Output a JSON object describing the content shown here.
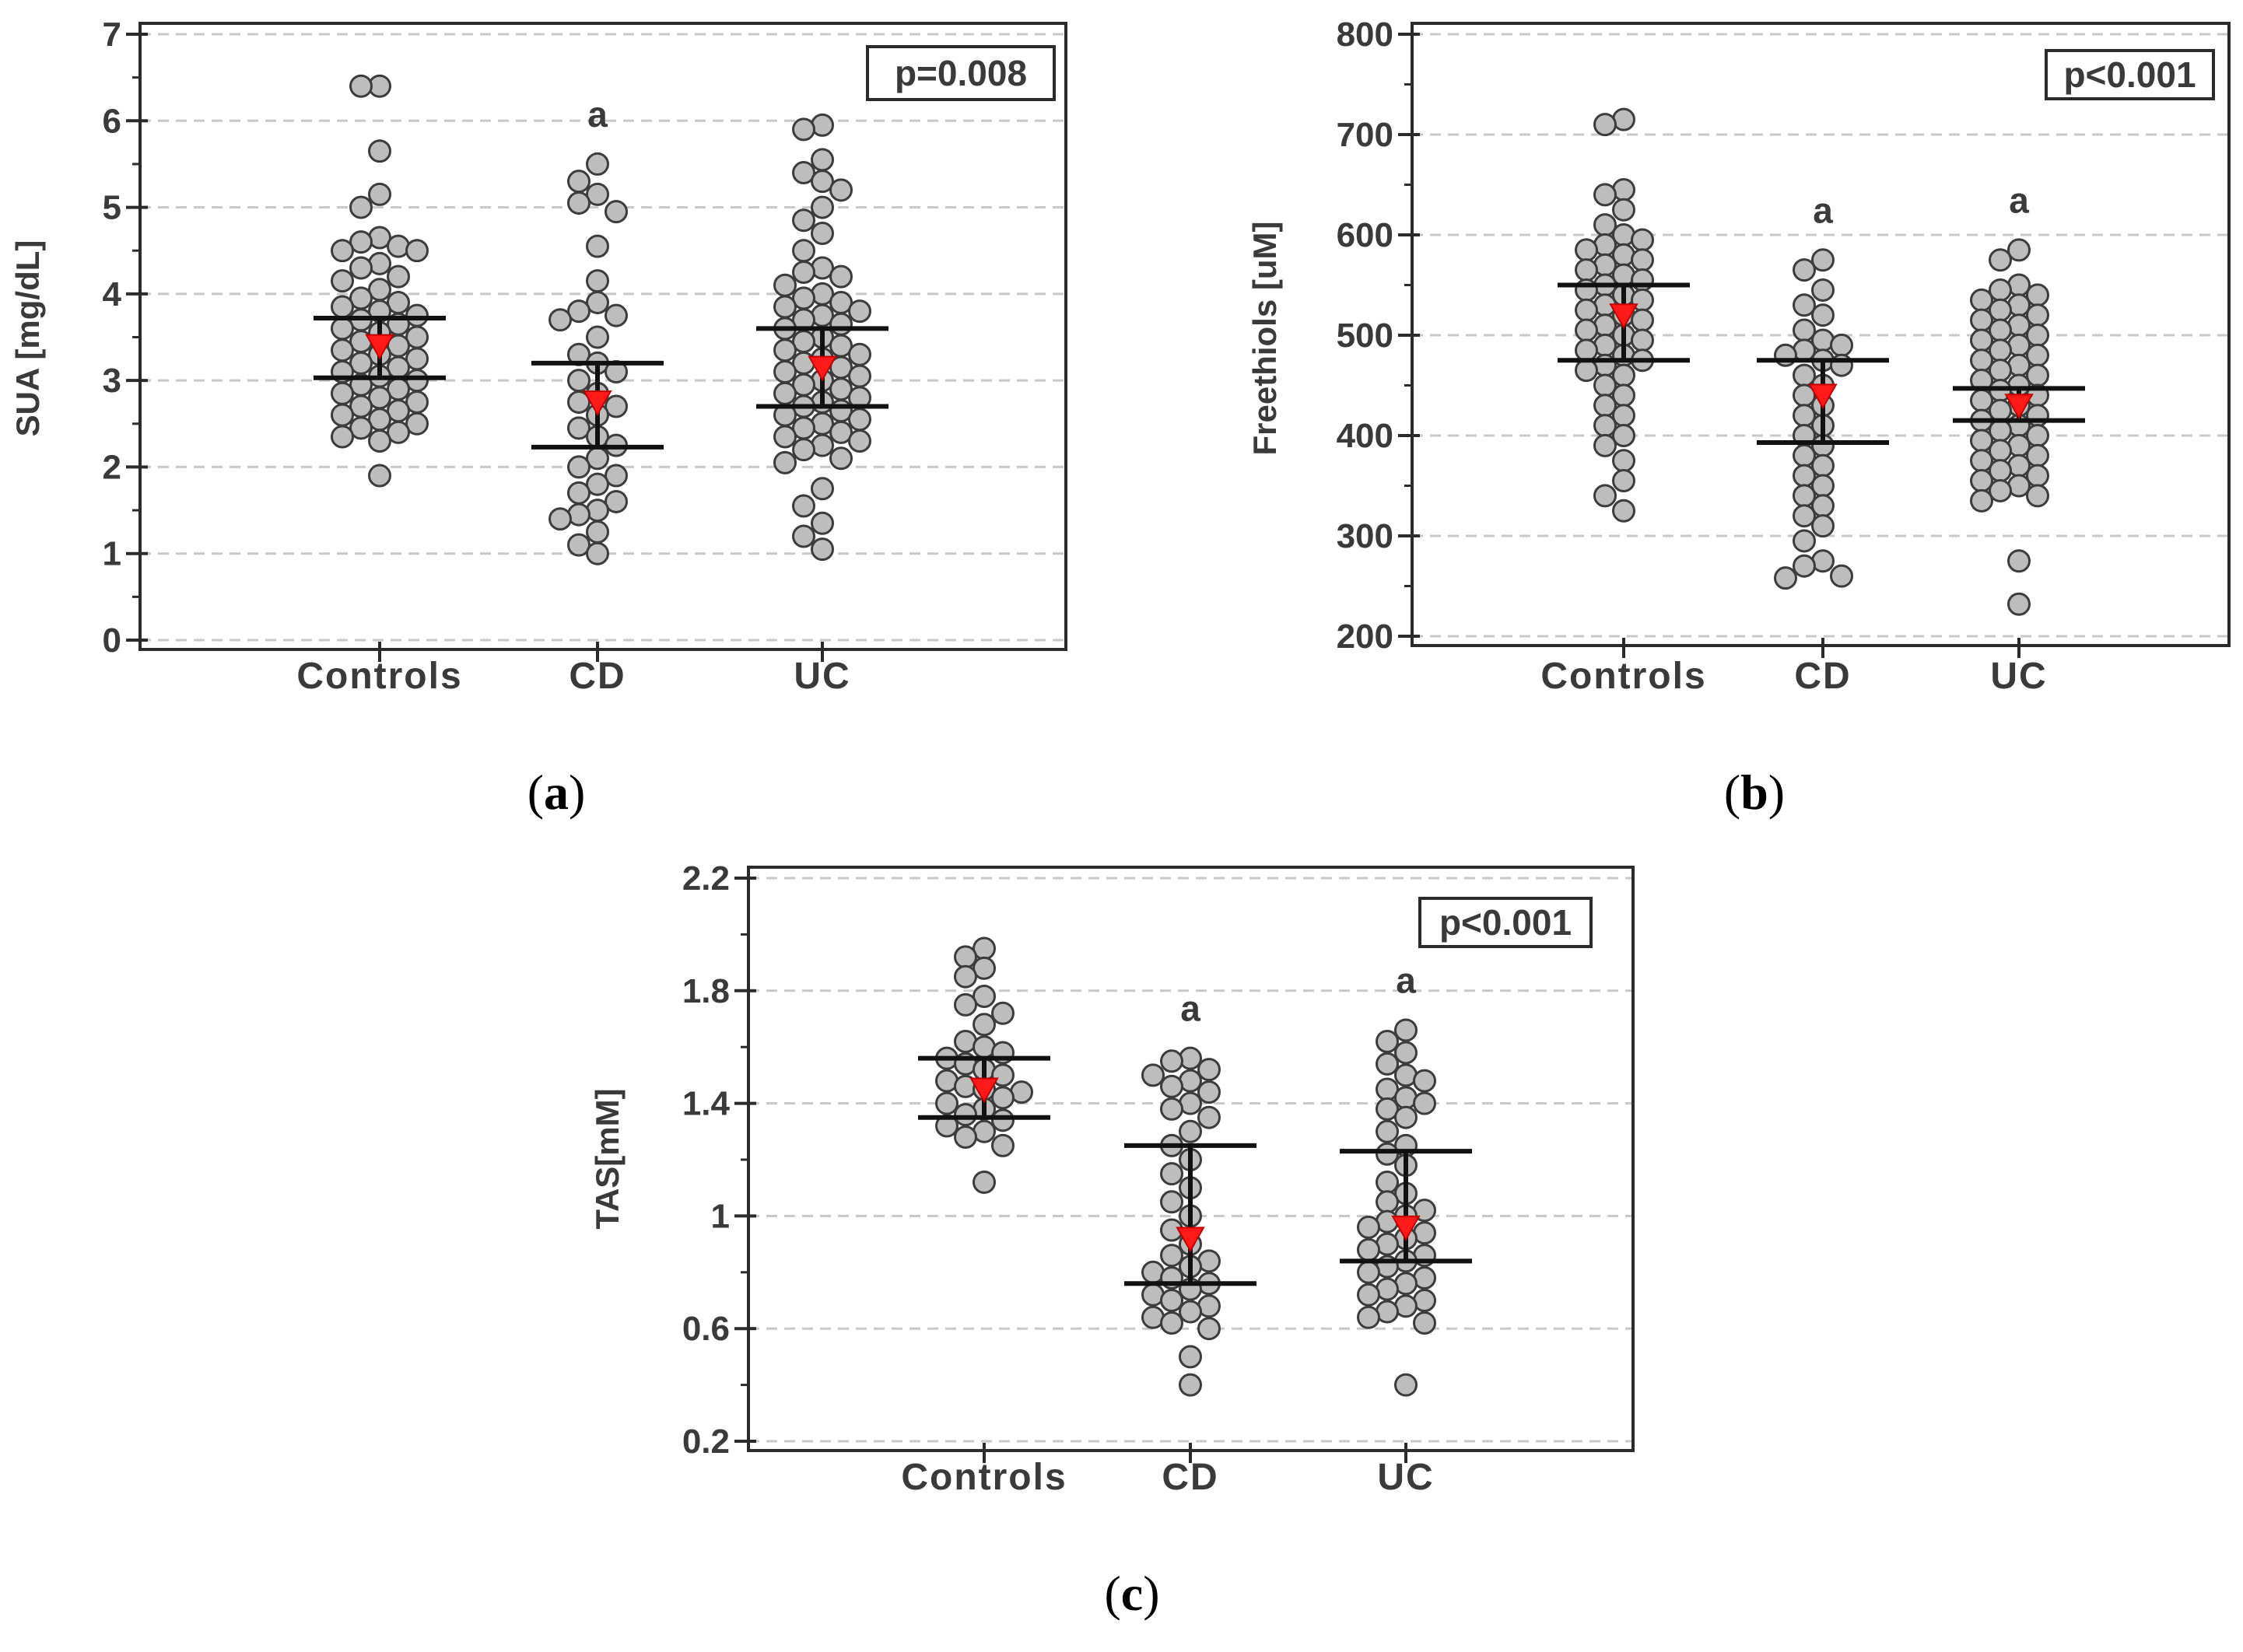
{
  "chart_data": [
    {
      "type": "scatter",
      "panel_label": "(a)",
      "ylabel": "SUA [mg/dL]",
      "xlabel": "",
      "categories": [
        "Controls",
        "CD",
        "UC"
      ],
      "ylim": [
        0,
        7
      ],
      "yticks": [
        0,
        1,
        2,
        3,
        4,
        5,
        6,
        7
      ],
      "grid": true,
      "annotation": "p=0.008",
      "significance": [
        "",
        "a",
        ""
      ],
      "groups": [
        {
          "name": "Controls",
          "q1": 3.03,
          "q3": 3.72,
          "median": 3.4,
          "values": [
            6.4,
            6.4,
            5.65,
            5.15,
            5.0,
            4.65,
            4.6,
            4.55,
            4.5,
            4.5,
            4.35,
            4.3,
            4.2,
            4.15,
            4.05,
            3.95,
            3.9,
            3.85,
            3.8,
            3.75,
            3.7,
            3.65,
            3.6,
            3.55,
            3.5,
            3.45,
            3.4,
            3.35,
            3.3,
            3.25,
            3.2,
            3.15,
            3.1,
            3.05,
            3.0,
            2.95,
            2.9,
            2.85,
            2.8,
            2.75,
            2.7,
            2.65,
            2.6,
            2.55,
            2.5,
            2.45,
            2.4,
            2.35,
            2.3,
            1.9
          ]
        },
        {
          "name": "CD",
          "q1": 2.23,
          "q3": 3.2,
          "median": 2.75,
          "values": [
            5.5,
            5.3,
            5.15,
            5.05,
            4.95,
            4.55,
            4.15,
            3.9,
            3.8,
            3.75,
            3.7,
            3.5,
            3.3,
            3.2,
            3.1,
            3.0,
            2.85,
            2.75,
            2.7,
            2.6,
            2.45,
            2.35,
            2.25,
            2.1,
            2.0,
            1.9,
            1.8,
            1.7,
            1.6,
            1.5,
            1.45,
            1.4,
            1.25,
            1.1,
            1.0
          ]
        },
        {
          "name": "UC",
          "q1": 2.7,
          "q3": 3.6,
          "median": 3.15,
          "values": [
            5.95,
            5.9,
            5.55,
            5.4,
            5.3,
            5.2,
            5.0,
            4.85,
            4.7,
            4.5,
            4.3,
            4.25,
            4.2,
            4.1,
            4.0,
            3.95,
            3.9,
            3.85,
            3.8,
            3.75,
            3.7,
            3.65,
            3.6,
            3.5,
            3.45,
            3.4,
            3.35,
            3.3,
            3.25,
            3.2,
            3.15,
            3.1,
            3.05,
            3.0,
            2.95,
            2.9,
            2.85,
            2.8,
            2.75,
            2.7,
            2.65,
            2.6,
            2.55,
            2.5,
            2.45,
            2.4,
            2.35,
            2.3,
            2.25,
            2.2,
            2.1,
            2.05,
            1.75,
            1.55,
            1.35,
            1.2,
            1.05
          ]
        }
      ]
    },
    {
      "type": "scatter",
      "panel_label": "(b)",
      "ylabel": "Freethiols [uM]",
      "xlabel": "",
      "categories": [
        "Controls",
        "CD",
        "UC"
      ],
      "ylim": [
        200,
        800
      ],
      "yticks": [
        200,
        300,
        400,
        500,
        600,
        700,
        800
      ],
      "grid": true,
      "annotation": "p<0.001",
      "significance": [
        "",
        "a",
        "a"
      ],
      "groups": [
        {
          "name": "Controls",
          "q1": 475,
          "q3": 550,
          "median": 520,
          "values": [
            715,
            710,
            645,
            640,
            625,
            610,
            600,
            595,
            590,
            585,
            580,
            575,
            570,
            565,
            560,
            555,
            550,
            545,
            540,
            535,
            530,
            525,
            520,
            515,
            510,
            505,
            500,
            495,
            490,
            485,
            480,
            475,
            470,
            465,
            460,
            450,
            440,
            430,
            420,
            410,
            400,
            390,
            375,
            355,
            340,
            325
          ]
        },
        {
          "name": "CD",
          "q1": 393,
          "q3": 475,
          "median": 440,
          "values": [
            575,
            565,
            545,
            530,
            520,
            505,
            495,
            490,
            485,
            480,
            475,
            470,
            460,
            450,
            440,
            430,
            420,
            410,
            400,
            390,
            380,
            370,
            360,
            350,
            340,
            330,
            320,
            310,
            295,
            275,
            270,
            260,
            258
          ]
        },
        {
          "name": "UC",
          "q1": 415,
          "q3": 447,
          "median": 430,
          "values": [
            585,
            575,
            550,
            545,
            540,
            535,
            530,
            525,
            520,
            515,
            510,
            505,
            500,
            495,
            490,
            485,
            480,
            475,
            470,
            465,
            460,
            455,
            450,
            445,
            440,
            435,
            430,
            425,
            420,
            415,
            410,
            405,
            400,
            395,
            390,
            385,
            380,
            375,
            370,
            365,
            360,
            355,
            350,
            345,
            340,
            335,
            275,
            232
          ]
        }
      ]
    },
    {
      "type": "scatter",
      "panel_label": "(c)",
      "ylabel": "TAS[mM]",
      "xlabel": "",
      "categories": [
        "Controls",
        "CD",
        "UC"
      ],
      "ylim": [
        0.2,
        2.2
      ],
      "yticks": [
        0.2,
        0.6,
        1.0,
        1.4,
        1.8,
        2.2
      ],
      "grid": true,
      "annotation": "p<0.001",
      "significance": [
        "",
        "a",
        "a"
      ],
      "groups": [
        {
          "name": "Controls",
          "q1": 1.35,
          "q3": 1.56,
          "median": 1.45,
          "values": [
            1.95,
            1.92,
            1.88,
            1.85,
            1.78,
            1.75,
            1.72,
            1.68,
            1.62,
            1.6,
            1.58,
            1.56,
            1.54,
            1.52,
            1.5,
            1.48,
            1.46,
            1.45,
            1.44,
            1.42,
            1.4,
            1.38,
            1.36,
            1.34,
            1.32,
            1.3,
            1.28,
            1.25,
            1.12
          ]
        },
        {
          "name": "CD",
          "q1": 0.76,
          "q3": 1.25,
          "median": 0.92,
          "values": [
            1.56,
            1.55,
            1.52,
            1.5,
            1.48,
            1.46,
            1.44,
            1.4,
            1.38,
            1.35,
            1.3,
            1.25,
            1.2,
            1.15,
            1.1,
            1.05,
            1.0,
            0.95,
            0.9,
            0.86,
            0.84,
            0.82,
            0.8,
            0.78,
            0.76,
            0.74,
            0.72,
            0.7,
            0.68,
            0.66,
            0.64,
            0.62,
            0.6,
            0.5,
            0.4
          ]
        },
        {
          "name": "UC",
          "q1": 0.84,
          "q3": 1.23,
          "median": 0.96,
          "values": [
            1.66,
            1.62,
            1.58,
            1.54,
            1.5,
            1.48,
            1.45,
            1.42,
            1.4,
            1.38,
            1.35,
            1.3,
            1.25,
            1.22,
            1.18,
            1.12,
            1.08,
            1.05,
            1.02,
            1.0,
            0.98,
            0.96,
            0.94,
            0.92,
            0.9,
            0.88,
            0.86,
            0.84,
            0.82,
            0.8,
            0.78,
            0.76,
            0.74,
            0.72,
            0.7,
            0.68,
            0.66,
            0.64,
            0.62,
            0.4
          ]
        }
      ]
    }
  ]
}
